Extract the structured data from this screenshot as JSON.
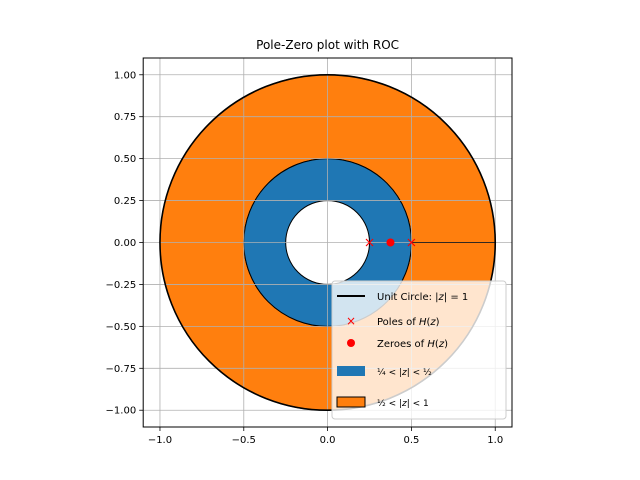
{
  "chart_data": {
    "type": "scatter",
    "title": "Pole-Zero plot with ROC",
    "xlabel": "",
    "ylabel": "",
    "xlim": [
      -1.1,
      1.1
    ],
    "ylim": [
      -1.1,
      1.1
    ],
    "grid": true,
    "x_ticks": [
      "−1.0",
      "−0.5",
      "0.0",
      "0.5",
      "1.0"
    ],
    "x_tick_values": [
      -1.0,
      -0.5,
      0.0,
      0.5,
      1.0
    ],
    "y_ticks": [
      "1.00",
      "0.75",
      "0.50",
      "0.25",
      "0.00",
      "−0.25",
      "−0.50",
      "−0.75",
      "−1.00"
    ],
    "y_tick_values": [
      1.0,
      0.75,
      0.5,
      0.25,
      0.0,
      -0.25,
      -0.5,
      -0.75,
      -1.0
    ],
    "unit_circle": {
      "radius": 1.0,
      "color": "#000000"
    },
    "regions": [
      {
        "inner_radius": 0.5,
        "outer_radius": 1.0,
        "color": "#ff7f0e"
      },
      {
        "inner_radius": 0.25,
        "outer_radius": 0.5,
        "color": "#1f77b4"
      }
    ],
    "poles": [
      {
        "x": 0.25,
        "y": 0.0
      },
      {
        "x": 0.5,
        "y": 0.0
      }
    ],
    "zeros": [
      {
        "x": 0.375,
        "y": 0.0
      }
    ],
    "pole_color": "#ff0000",
    "zero_color": "#ff0000",
    "legend_placement": "lower-right",
    "legend": {
      "unit_circle": "Unit Circle: |z| = 1",
      "poles": "Poles of H(z)",
      "zeros": "Zeroes of H(z)",
      "roc1": "1/4 < |z| < 1/2",
      "roc2": "1/2 < |z| < 1"
    }
  }
}
